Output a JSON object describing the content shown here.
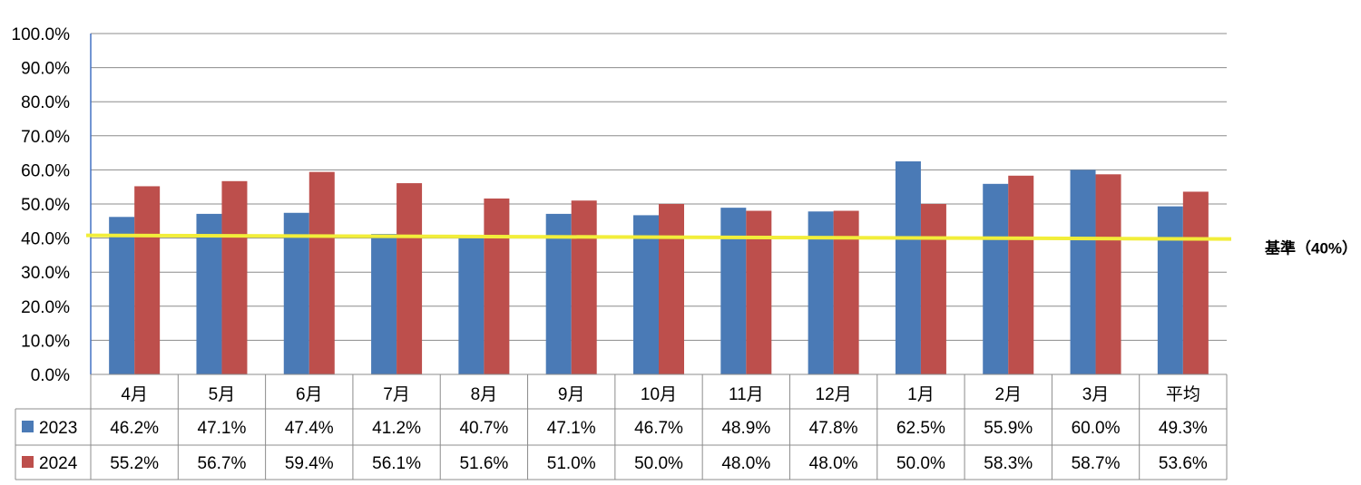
{
  "chart_data": {
    "type": "bar",
    "categories": [
      "4月",
      "5月",
      "6月",
      "7月",
      "8月",
      "9月",
      "10月",
      "11月",
      "12月",
      "1月",
      "2月",
      "3月",
      "平均"
    ],
    "series": [
      {
        "name": "2023",
        "color": "#4a7ab6",
        "values": [
          46.2,
          47.1,
          47.4,
          41.2,
          40.7,
          47.1,
          46.7,
          48.9,
          47.8,
          62.5,
          55.9,
          60.0,
          49.3
        ],
        "labels": [
          "46.2%",
          "47.1%",
          "47.4%",
          "41.2%",
          "40.7%",
          "47.1%",
          "46.7%",
          "48.9%",
          "47.8%",
          "62.5%",
          "55.9%",
          "60.0%",
          "49.3%"
        ]
      },
      {
        "name": "2024",
        "color": "#bd4f4c",
        "values": [
          55.2,
          56.7,
          59.4,
          56.1,
          51.6,
          51.0,
          50.0,
          48.0,
          48.0,
          50.0,
          58.3,
          58.7,
          53.6
        ],
        "labels": [
          "55.2%",
          "56.7%",
          "59.4%",
          "56.1%",
          "51.6%",
          "51.0%",
          "50.0%",
          "48.0%",
          "48.0%",
          "50.0%",
          "58.3%",
          "58.7%",
          "53.6%"
        ]
      }
    ],
    "yticks": [
      "0.0%",
      "10.0%",
      "20.0%",
      "30.0%",
      "40.0%",
      "50.0%",
      "60.0%",
      "70.0%",
      "80.0%",
      "90.0%",
      "100.0%"
    ],
    "ylim": [
      0,
      100
    ],
    "grid": true,
    "reference_line": {
      "value": 40,
      "label": "基準（40%）",
      "color": "#f2ee3a"
    },
    "data_table": true
  }
}
